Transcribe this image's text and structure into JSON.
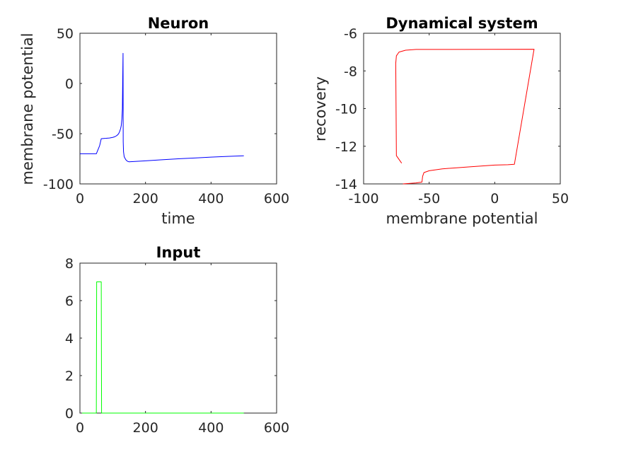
{
  "figure": {
    "background": "#ffffff"
  },
  "chart_data": [
    {
      "id": "neuron",
      "type": "line",
      "title": "Neuron",
      "xlabel": "time",
      "ylabel": "membrane potential",
      "xlim": [
        0,
        600
      ],
      "ylim": [
        -100,
        50
      ],
      "xticks": [
        0,
        200,
        400,
        600
      ],
      "yticks": [
        -100,
        -50,
        0,
        50
      ],
      "grid": false,
      "series": [
        {
          "color": "#0000ff",
          "x": [
            0,
            50,
            60,
            65,
            70,
            80,
            90,
            100,
            105,
            110,
            115,
            118,
            121,
            124,
            126,
            128,
            129.5,
            130.5,
            131.5,
            132,
            133,
            135,
            140,
            145,
            150,
            200,
            250,
            300,
            350,
            400,
            450,
            500
          ],
          "y": [
            -70,
            -70,
            -62,
            -55,
            -54.8,
            -54.6,
            -54.3,
            -53.7,
            -53.2,
            -52.4,
            -51.2,
            -50,
            -48,
            -45,
            -42,
            -35,
            -25,
            5,
            30,
            -58,
            -68,
            -73,
            -76,
            -77.5,
            -78,
            -77,
            -76,
            -75,
            -74.2,
            -73.3,
            -72.6,
            -72
          ]
        }
      ]
    },
    {
      "id": "dynamical-system",
      "type": "line",
      "title": "Dynamical system",
      "xlabel": "membrane potential",
      "ylabel": "recovery",
      "xlim": [
        -100,
        50
      ],
      "ylim": [
        -14,
        -6
      ],
      "xticks": [
        -100,
        -50,
        0,
        50
      ],
      "yticks": [
        -14,
        -12,
        -10,
        -8,
        -6
      ],
      "grid": false,
      "series": [
        {
          "color": "#ff0000",
          "x": [
            -70,
            -60,
            -55.5,
            -55,
            -54,
            -50,
            -40,
            -20,
            0,
            10,
            15,
            30,
            30,
            -60,
            -68,
            -73,
            -75,
            -75.5,
            -75,
            -71
          ],
          "y": [
            -14,
            -13.95,
            -13.9,
            -13.6,
            -13.4,
            -13.3,
            -13.2,
            -13.1,
            -13.0,
            -12.98,
            -12.96,
            -6.85,
            -6.85,
            -6.86,
            -6.9,
            -7.0,
            -7.2,
            -7.6,
            -12.5,
            -12.9
          ]
        }
      ]
    },
    {
      "id": "input",
      "type": "line",
      "title": "Input",
      "xlabel": "",
      "ylabel": "",
      "xlim": [
        0,
        600
      ],
      "ylim": [
        0,
        8
      ],
      "xticks": [
        0,
        200,
        400,
        600
      ],
      "yticks": [
        0,
        2,
        4,
        6,
        8
      ],
      "grid": false,
      "series": [
        {
          "color": "#00ff00",
          "x": [
            0,
            50,
            51,
            65,
            66,
            500
          ],
          "y": [
            0,
            0,
            7,
            7,
            0,
            0
          ]
        }
      ]
    }
  ]
}
